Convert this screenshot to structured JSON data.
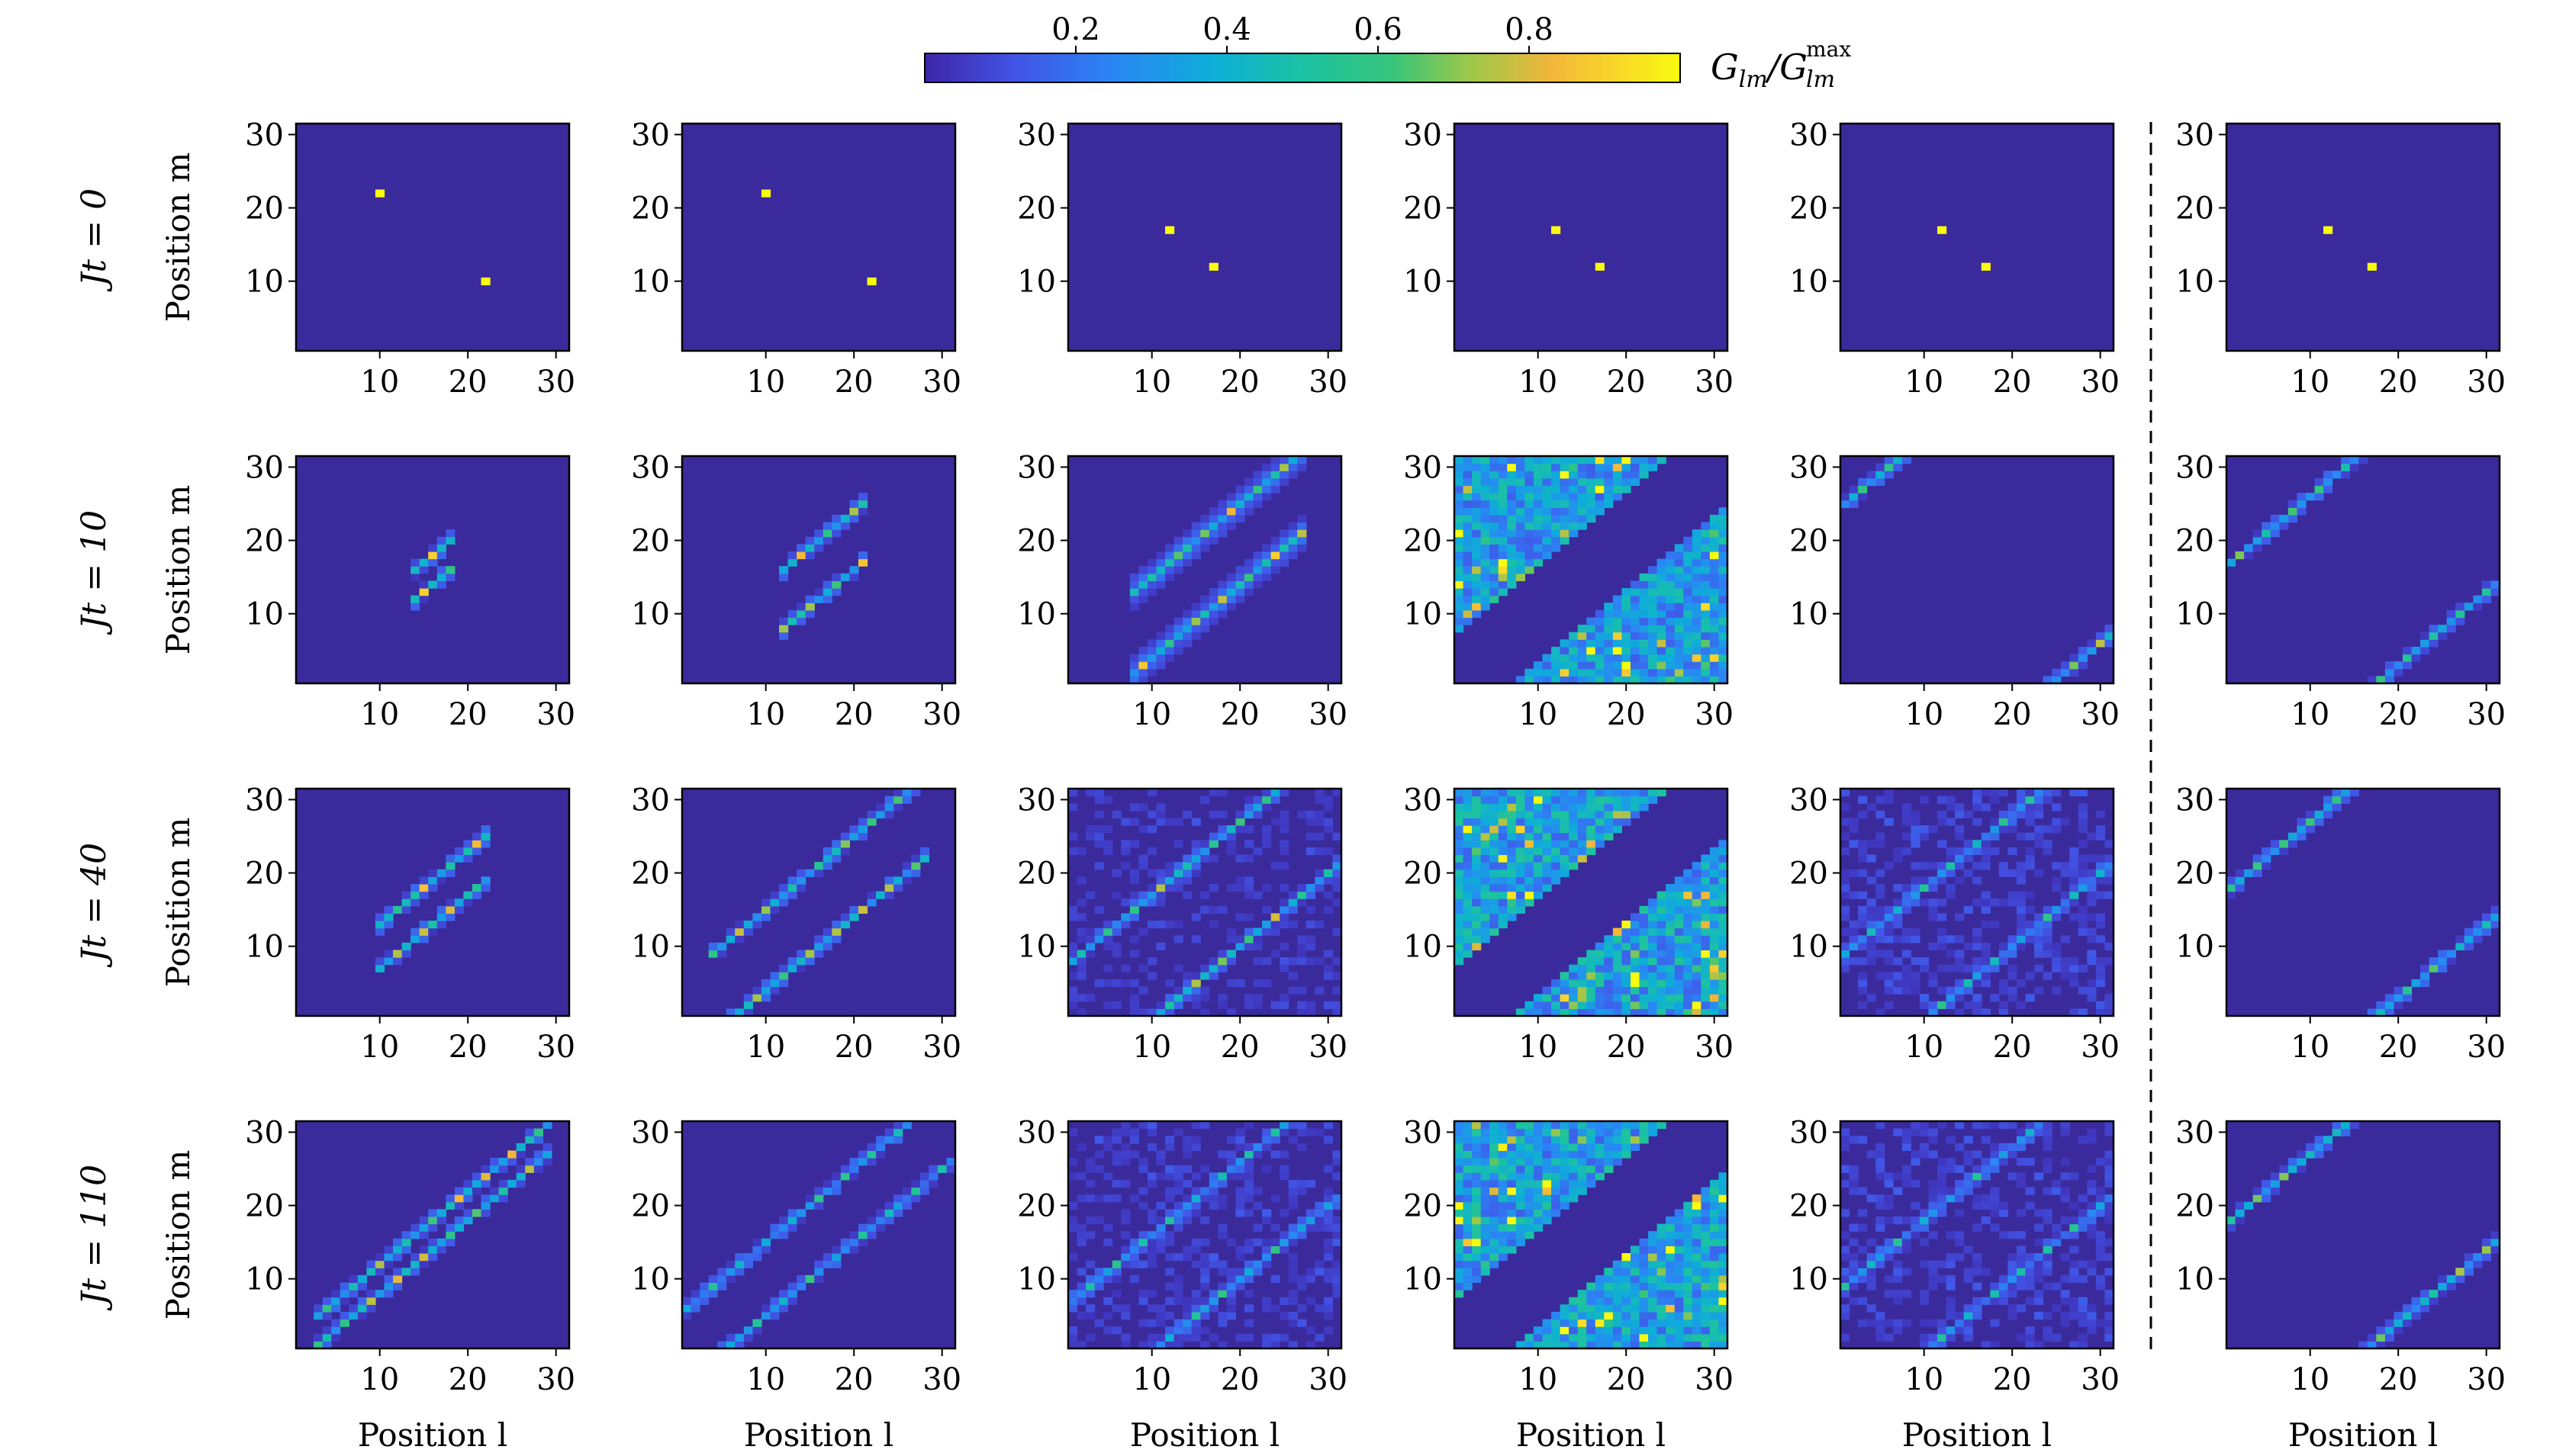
{
  "chart_data": {
    "type": "heatmap",
    "grid_rows": 4,
    "grid_cols": 6,
    "colormap": "viridis",
    "colors": {
      "background_cell": "#3b2a9b",
      "colormap_stops": [
        "#3e26a8",
        "#4254e6",
        "#2a86f5",
        "#0eaed8",
        "#1bc2a3",
        "#78cb5e",
        "#e6b737",
        "#f9d928",
        "#f9fb0e"
      ]
    },
    "colorbar": {
      "label": "G_lm / G_lm^max",
      "ticks": [
        "0.2",
        "0.4",
        "0.6",
        "0.8"
      ],
      "tick_values": [
        0.2,
        0.4,
        0.6,
        0.8
      ],
      "range": [
        0.0,
        1.0
      ]
    },
    "row_labels": [
      "Jt = 0",
      "Jt = 10",
      "Jt = 40",
      "Jt = 110"
    ],
    "xlabel": "Position l",
    "ylabel": "Position m",
    "xticks": [
      "10",
      "20",
      "30"
    ],
    "yticks": [
      "10",
      "20",
      "30"
    ],
    "xlim": [
      1,
      31
    ],
    "ylim": [
      1,
      31
    ],
    "separator": "dashed vertical line between columns 5 and 6",
    "panels": [
      {
        "row": 0,
        "col": 0,
        "pattern": "points",
        "points": [
          [
            10,
            22
          ],
          [
            22,
            10
          ]
        ]
      },
      {
        "row": 0,
        "col": 1,
        "pattern": "points",
        "points": [
          [
            10,
            22
          ],
          [
            22,
            10
          ]
        ]
      },
      {
        "row": 0,
        "col": 2,
        "pattern": "points",
        "points": [
          [
            12,
            17
          ],
          [
            17,
            12
          ]
        ]
      },
      {
        "row": 0,
        "col": 3,
        "pattern": "points",
        "points": [
          [
            12,
            17
          ],
          [
            17,
            12
          ]
        ]
      },
      {
        "row": 0,
        "col": 4,
        "pattern": "points",
        "points": [
          [
            12,
            17
          ],
          [
            17,
            12
          ]
        ]
      },
      {
        "row": 0,
        "col": 5,
        "pattern": "points",
        "points": [
          [
            12,
            17
          ],
          [
            17,
            12
          ]
        ]
      },
      {
        "row": 1,
        "col": 0,
        "pattern": "diagonal",
        "offsets": [
          2,
          -2
        ],
        "span": [
          14,
          18
        ],
        "peak": 0.9,
        "noise": 0.0
      },
      {
        "row": 1,
        "col": 1,
        "pattern": "diagonal",
        "offsets": [
          4,
          -4
        ],
        "span": [
          12,
          21
        ],
        "peak": 0.9,
        "noise": 0.0
      },
      {
        "row": 1,
        "col": 2,
        "pattern": "diagonal",
        "offsets": [
          5,
          -6
        ],
        "span": [
          8,
          27
        ],
        "peak": 0.9,
        "noise": 0.02,
        "halo": 0.3
      },
      {
        "row": 1,
        "col": 3,
        "pattern": "regions",
        "offsets": [
          14,
          -14
        ],
        "peak": 0.6,
        "noise": 0.35
      },
      {
        "row": 1,
        "col": 4,
        "pattern": "diagonal",
        "offsets": [
          24,
          -24
        ],
        "span": [
          1,
          31
        ],
        "peak": 0.8,
        "noise": 0.02
      },
      {
        "row": 1,
        "col": 5,
        "pattern": "diagonal",
        "offsets": [
          16,
          -17
        ],
        "span": [
          1,
          31
        ],
        "peak": 0.7,
        "noise": 0.0
      },
      {
        "row": 2,
        "col": 0,
        "pattern": "diagonal",
        "offsets": [
          3,
          -3
        ],
        "span": [
          10,
          22
        ],
        "peak": 0.9,
        "noise": 0.0
      },
      {
        "row": 2,
        "col": 1,
        "pattern": "diagonal",
        "offsets": [
          5,
          -6
        ],
        "span": [
          4,
          28
        ],
        "peak": 0.8,
        "noise": 0.0
      },
      {
        "row": 2,
        "col": 2,
        "pattern": "diagonal",
        "offsets": [
          7,
          -10
        ],
        "span": [
          1,
          31
        ],
        "peak": 0.8,
        "noise": 0.12
      },
      {
        "row": 2,
        "col": 3,
        "pattern": "regions",
        "offsets": [
          14,
          -14
        ],
        "peak": 0.6,
        "noise": 0.38
      },
      {
        "row": 2,
        "col": 4,
        "pattern": "diagonal",
        "offsets": [
          8,
          -10
        ],
        "span": [
          1,
          31
        ],
        "peak": 0.6,
        "noise": 0.15
      },
      {
        "row": 2,
        "col": 5,
        "pattern": "diagonal",
        "offsets": [
          17,
          -17
        ],
        "span": [
          1,
          31
        ],
        "peak": 0.7,
        "noise": 0.0
      },
      {
        "row": 3,
        "col": 0,
        "pattern": "diagonal",
        "offsets": [
          2,
          -2
        ],
        "span": [
          3,
          29
        ],
        "peak": 0.85,
        "noise": 0.0
      },
      {
        "row": 3,
        "col": 1,
        "pattern": "diagonal",
        "offsets": [
          5,
          -5
        ],
        "span": [
          1,
          31
        ],
        "peak": 0.6,
        "noise": 0.0
      },
      {
        "row": 3,
        "col": 2,
        "pattern": "diagonal",
        "offsets": [
          6,
          -10
        ],
        "span": [
          1,
          31
        ],
        "peak": 0.6,
        "noise": 0.14
      },
      {
        "row": 3,
        "col": 3,
        "pattern": "regions",
        "offsets": [
          14,
          -14
        ],
        "peak": 0.6,
        "noise": 0.38
      },
      {
        "row": 3,
        "col": 4,
        "pattern": "diagonal",
        "offsets": [
          8,
          -10
        ],
        "span": [
          1,
          31
        ],
        "peak": 0.55,
        "noise": 0.15
      },
      {
        "row": 3,
        "col": 5,
        "pattern": "diagonal",
        "offsets": [
          17,
          -16
        ],
        "span": [
          1,
          31
        ],
        "peak": 0.75,
        "noise": 0.0
      }
    ]
  }
}
